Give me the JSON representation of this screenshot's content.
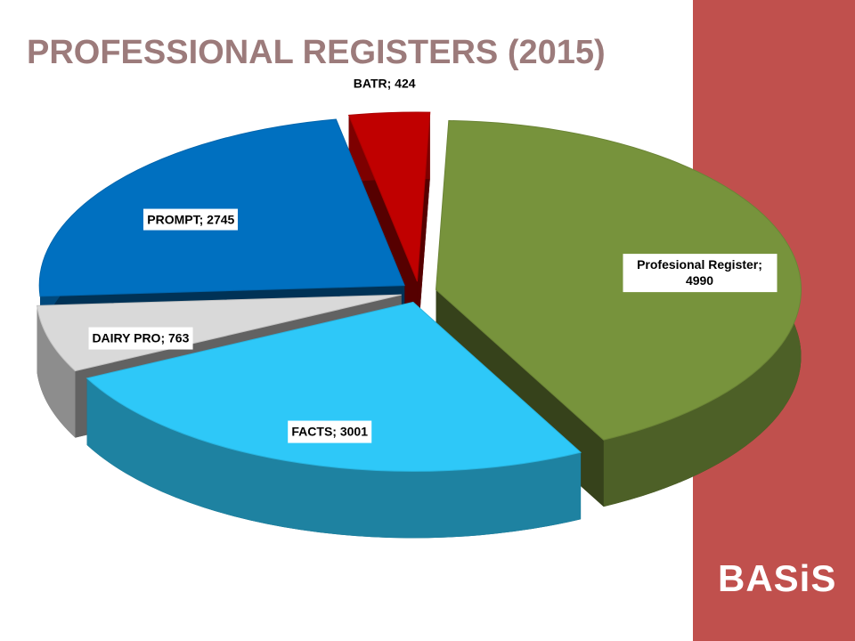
{
  "chart_data": {
    "type": "pie",
    "title": "PROFESSIONAL REGISTERS (2015)",
    "values": [
      4990,
      3001,
      763,
      2745,
      424
    ],
    "value_labels": [
      "Profesional Register; 4990",
      "FACTS; 3001",
      "DAIRY PRO; 763",
      "PROMPT; 2745",
      "BATR; 424"
    ],
    "colors": [
      "#77933c",
      "#2ec8f8",
      "#d9d9d9",
      "#0070c0",
      "#c00000"
    ]
  },
  "logo": "BASiS"
}
